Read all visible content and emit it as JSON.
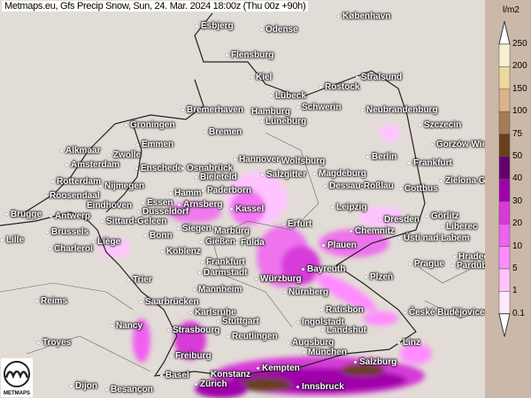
{
  "header": {
    "title": "Metmaps.eu, Gfs Precip Snow, Sun, 24. Mar. 2024 18:00z (Thu 00z +90h)"
  },
  "legend": {
    "unit": "l/m2",
    "ticks": [
      "250",
      "200",
      "150",
      "100",
      "75",
      "50",
      "40",
      "30",
      "20",
      "10",
      "5",
      "1",
      "0.1"
    ],
    "colors": [
      "#f7f0d4",
      "#eed99c",
      "#dcb289",
      "#a67c57",
      "#6b3f1c",
      "#62006e",
      "#a000aa",
      "#d73ad8",
      "#f061f0",
      "#ff8cff",
      "#ffc4ff",
      "#ffe9ff"
    ]
  },
  "logo": {
    "text": "METMAPS"
  },
  "cities": [
    "København",
    "Esbjerg",
    "Odense",
    "Flensburg",
    "Kiel",
    "Lübeck",
    "Rostock",
    "Stralsund",
    "Bremerhaven",
    "Hamburg",
    "Schwerin",
    "Neubrandenburg",
    "Szczecin",
    "Bremen",
    "Lüneburg",
    "Groningen",
    "Emmen",
    "Alkmaar",
    "Zwolle",
    "Amsterdam",
    "Enschede",
    "Osnabrück",
    "Bieleteld",
    "Hannover",
    "Wolfsburg",
    "Salzgitter",
    "Magdeburg",
    "Berlin",
    "Frankfurt",
    "Gorzów Wielkopolski",
    "Rotterdam",
    "Nijmegen",
    "Hamm",
    "Paderborn",
    "Zielona Góra",
    "Dessau-Roßlau",
    "Cottbus",
    "Roosendaal",
    "Eindhoven",
    "Essen",
    "Arnsberg",
    "Dusseldorf",
    "Kassel",
    "Leipzig",
    "Brugge",
    "Antwerp",
    "Erfurt",
    "Dresden",
    "Görlitz",
    "Sittard-Geleen",
    "Siegen",
    "Marburg",
    "Gießen",
    "Fulda",
    "Chemnitz",
    "Ústí nad Labem",
    "Liberec",
    "Brussels",
    "Bonn",
    "Liège",
    "Lille",
    "Plauen",
    "Charleroi",
    "Koblenz",
    "Frankfurt",
    "Darmstadt",
    "Würzburg",
    "Bayreuth",
    "Plzeň",
    "Prague",
    "Hradec Králové",
    "Pardubice",
    "Trier",
    "Mannheim",
    "Nürnberg",
    "Reims",
    "Saarbrücken",
    "Karlsruhe",
    "Ratisbon",
    "České Budějovice",
    "Stuttgart",
    "Ingolstadt",
    "Nancy",
    "Strasbourg",
    "Reutlingen",
    "Landshut",
    "Augsburg",
    "Troyes",
    "Linz",
    "München",
    "Freiburg",
    "Salzburg",
    "Kempten",
    "Konstanz",
    "Basel",
    "Zürich",
    "Innsbruck",
    "Dijon",
    "Besançon"
  ]
}
